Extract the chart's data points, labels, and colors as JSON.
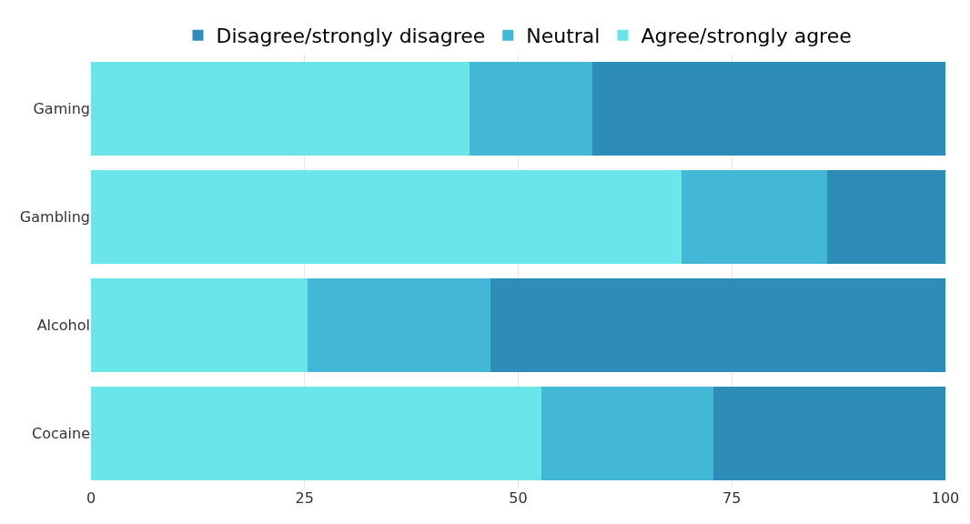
{
  "chart_data": {
    "type": "bar",
    "orientation": "horizontal",
    "stacked": true,
    "categories": [
      "Gaming",
      "Gambling",
      "Alcohol",
      "Cocaine"
    ],
    "series": [
      {
        "name": "Agree/strongly agree",
        "color": "#6ae5e9",
        "values": [
          44.3,
          69.1,
          25.3,
          52.7
        ]
      },
      {
        "name": "Neutral",
        "color": "#42b7d6",
        "values": [
          14.4,
          17.1,
          21.4,
          20.1
        ]
      },
      {
        "name": "Disagree/strongly disagree",
        "color": "#2e8cb9",
        "values": [
          41.3,
          13.8,
          53.3,
          27.2
        ]
      }
    ],
    "xlim": [
      0,
      100
    ],
    "xticks": [
      0,
      25,
      50,
      75,
      100
    ],
    "grid": "x",
    "legend": "top"
  }
}
